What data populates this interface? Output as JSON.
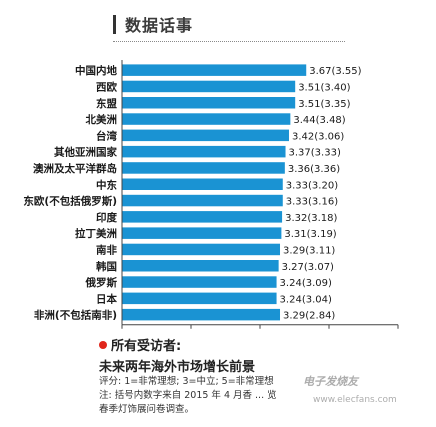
{
  "header": {
    "title": "数据话事"
  },
  "chart_data": {
    "type": "bar",
    "orientation": "horizontal",
    "categories": [
      "中国内地",
      "西欧",
      "东盟",
      "北美洲",
      "台湾",
      "其他亚洲国家",
      "澳洲及太平洋群岛",
      "中东",
      "东欧(不包括俄罗斯)",
      "印度",
      "拉丁美洲",
      "南非",
      "韩国",
      "俄罗斯",
      "日本",
      "非洲(不包括南非)"
    ],
    "values": [
      3.67,
      3.51,
      3.51,
      3.44,
      3.42,
      3.37,
      3.36,
      3.33,
      3.33,
      3.32,
      3.31,
      3.29,
      3.27,
      3.24,
      3.24,
      3.29
    ],
    "labels": [
      "3.67(3.55)",
      "3.51(3.40)",
      "3.51(3.35)",
      "3.44(3.48)",
      "3.42(3.06)",
      "3.37(3.33)",
      "3.36(3.36)",
      "3.33(3.20)",
      "3.33(3.16)",
      "3.32(3.18)",
      "3.31(3.19)",
      "3.29(3.11)",
      "3.27(3.07)",
      "3.24(3.09)",
      "3.24(3.04)",
      "3.29(2.84)"
    ],
    "xlim": [
      1,
      5
    ],
    "xticks": [
      1,
      2,
      3,
      4,
      5
    ],
    "bar_color": "#1a93d3",
    "grid": false
  },
  "caption": {
    "line1": "所有受访者:",
    "line2": "未来两年海外市场增长前景",
    "note1": "评分: 1=非常理想; 3=中立; 5=非常理想",
    "note2": "注: 括号内数字来自 2015 年 4 月香 ... 览",
    "note3": "春季灯饰展问卷调查。",
    "marker_color": "#e0261b"
  },
  "watermark": {
    "text": "电子发烧友",
    "url": "www.elecfans.com"
  }
}
